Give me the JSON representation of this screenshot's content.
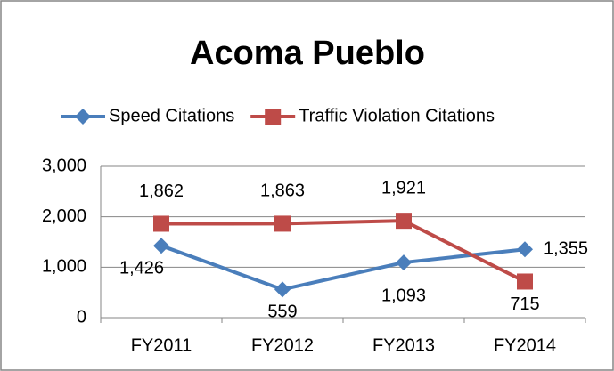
{
  "chart_data": {
    "type": "line",
    "title": "Acoma Pueblo",
    "categories": [
      "FY2011",
      "FY2012",
      "FY2013",
      "FY2014"
    ],
    "series": [
      {
        "name": "Speed Citations",
        "color": "#4a7ebb",
        "marker": "diamond",
        "values": [
          1426,
          559,
          1093,
          1355
        ],
        "value_labels": [
          "1,426",
          "559",
          "1,093",
          "1,355"
        ]
      },
      {
        "name": "Traffic Violation Citations",
        "color": "#be4b48",
        "marker": "square",
        "values": [
          1862,
          1863,
          1921,
          715
        ],
        "value_labels": [
          "1,862",
          "1,863",
          "1,921",
          "715"
        ]
      }
    ],
    "ylim": [
      0,
      3000
    ],
    "yticks": [
      0,
      {
        "value": 1000,
        "label": "1,000"
      },
      {
        "value": 2000,
        "label": "2,000"
      },
      {
        "value": 3000,
        "label": "3,000"
      }
    ],
    "grid": true,
    "legend": "top"
  }
}
